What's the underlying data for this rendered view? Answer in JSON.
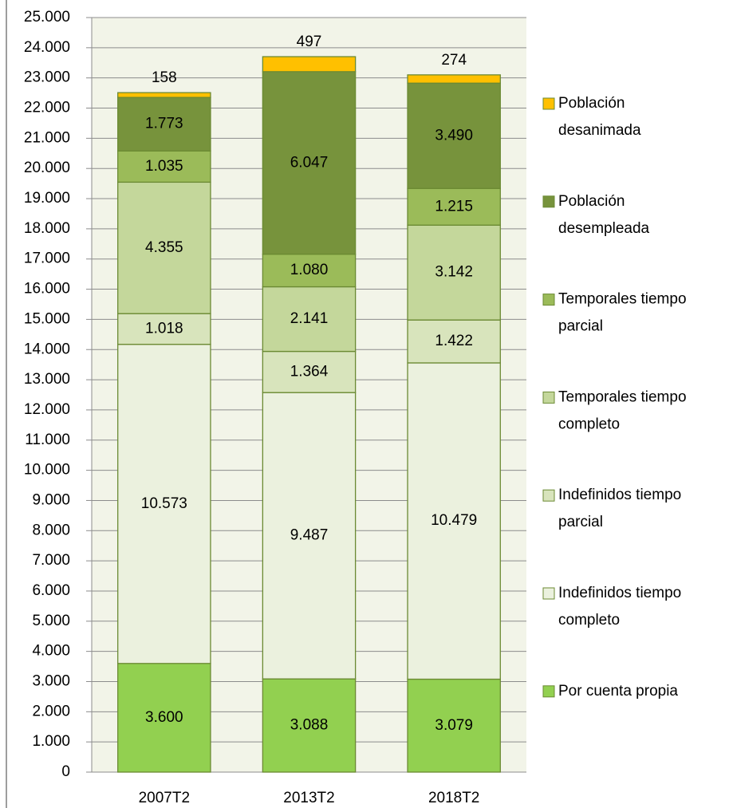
{
  "chart_data": {
    "type": "stacked_bar",
    "categories": [
      "2007T2",
      "2013T2",
      "2018T2"
    ],
    "series": [
      {
        "name": "Por cuenta propia",
        "color": "#92d050",
        "values": [
          3600,
          3088,
          3079
        ],
        "value_labels": [
          "3.600",
          "3.088",
          "3.079"
        ]
      },
      {
        "name": "Indefinidos tiempo completo",
        "color": "#ebf1de",
        "values": [
          10573,
          9487,
          10479
        ],
        "value_labels": [
          "10.573",
          "9.487",
          "10.479"
        ]
      },
      {
        "name": "Indefinidos tiempo parcial",
        "color": "#d8e4bc",
        "values": [
          1018,
          1364,
          1422
        ],
        "value_labels": [
          "1.018",
          "1.364",
          "1.422"
        ]
      },
      {
        "name": "Temporales tiempo completo",
        "color": "#c4d79b",
        "values": [
          4355,
          2141,
          3142
        ],
        "value_labels": [
          "4.355",
          "2.141",
          "3.142"
        ]
      },
      {
        "name": "Temporales tiempo parcial",
        "color": "#9bbb59",
        "values": [
          1035,
          1080,
          1215
        ],
        "value_labels": [
          "1.035",
          "1.080",
          "1.215"
        ]
      },
      {
        "name": "Población desempleada",
        "color": "#77933c",
        "values": [
          1773,
          6047,
          3490
        ],
        "value_labels": [
          "1.773",
          "6.047",
          "3.490"
        ]
      },
      {
        "name": "Población desanimada",
        "color": "#ffc000",
        "values": [
          158,
          497,
          274
        ]
      }
    ],
    "ylim": [
      0,
      25000
    ],
    "yticks": [
      0,
      {
        "value": 1000,
        "label": "1.000"
      },
      {
        "value": 2000,
        "label": "2.000"
      },
      {
        "value": 3000,
        "label": "3.000"
      },
      {
        "value": 4000,
        "label": "4.000"
      },
      {
        "value": 5000,
        "label": "5.000"
      },
      {
        "value": 6000,
        "label": "6.000"
      },
      {
        "value": 7000,
        "label": "7.000"
      },
      {
        "value": 8000,
        "label": "8.000"
      },
      {
        "value": 9000,
        "label": "9.000"
      },
      {
        "value": 10000,
        "label": "10.000"
      },
      {
        "value": 11000,
        "label": "11.000"
      },
      {
        "value": 12000,
        "label": "12.000"
      },
      {
        "value": 13000,
        "label": "13.000"
      },
      {
        "value": 14000,
        "label": "14.000"
      },
      {
        "value": 15000,
        "label": "15.000"
      },
      {
        "value": 16000,
        "label": "16.000"
      },
      {
        "value": 17000,
        "label": "17.000"
      },
      {
        "value": 18000,
        "label": "18.000"
      },
      {
        "value": 19000,
        "label": "19.000"
      },
      {
        "value": 20000,
        "label": "20.000"
      },
      {
        "value": 21000,
        "label": "21.000"
      },
      {
        "value": 22000,
        "label": "22.000"
      },
      {
        "value": 23000,
        "label": "23.000"
      },
      {
        "value": 24000,
        "label": "24.000"
      },
      {
        "value": 25000,
        "label": "25.000"
      }
    ],
    "grid": true,
    "legend": "right"
  }
}
